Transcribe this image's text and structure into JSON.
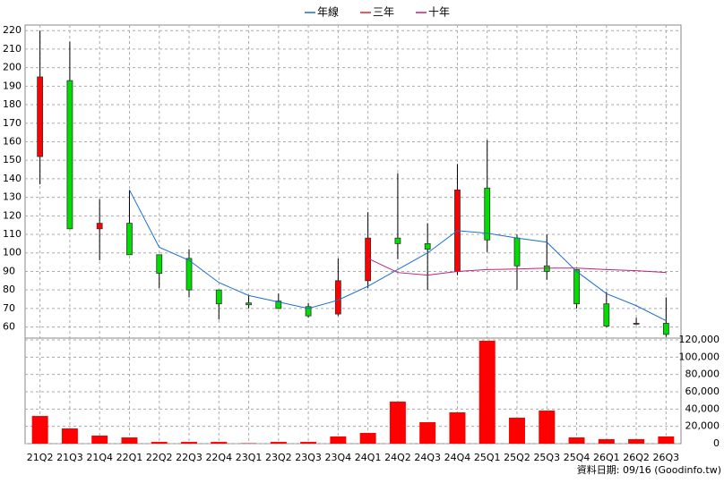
{
  "chart_data": [
    {
      "type": "candlestick",
      "open": [
        152,
        193,
        113,
        116,
        99,
        97,
        80,
        73,
        74,
        71,
        67,
        85,
        108,
        105,
        90,
        135,
        108,
        93,
        91,
        72.5,
        62,
        62
      ],
      "high": [
        220,
        214,
        129,
        134,
        99,
        102,
        80,
        77,
        78,
        73,
        97,
        122,
        143,
        116,
        148,
        161,
        110,
        110,
        91,
        79,
        65,
        76
      ],
      "low": [
        137,
        113,
        96,
        99,
        81,
        76,
        64,
        70,
        70,
        65,
        66,
        81,
        96.6,
        80,
        88,
        100.5,
        80,
        85.5,
        70,
        60,
        61,
        54.7
      ],
      "close": [
        195,
        113,
        116,
        99,
        89,
        80,
        72.5,
        72,
        70,
        66,
        85,
        108,
        105,
        102,
        134,
        107,
        93,
        90,
        72.5,
        60.5,
        62,
        56
      ],
      "up_color": "#ff0000",
      "down_color": "#00dd00",
      "series": [
        {
          "name": "年線",
          "color": "#1a6fd1",
          "values": [
            null,
            null,
            null,
            134,
            103,
            96,
            84,
            77,
            73.5,
            70,
            74.5,
            82,
            91,
            100,
            112,
            110.6,
            108,
            105.8,
            90,
            78,
            71.5,
            63.4
          ]
        },
        {
          "name": "三年",
          "color": "#e0202a",
          "values": [
            null,
            null,
            null,
            null,
            null,
            null,
            null,
            null,
            null,
            null,
            null,
            null,
            null,
            null,
            null,
            null,
            null,
            null,
            null,
            null,
            null,
            null
          ]
        },
        {
          "name": "十年",
          "color": "#c0207a",
          "values": [
            null,
            null,
            null,
            null,
            null,
            null,
            null,
            null,
            null,
            null,
            null,
            97,
            89.4,
            88,
            90,
            91,
            91.3,
            91.8,
            91.8,
            91,
            90.4,
            89.4
          ]
        }
      ],
      "ylim": [
        54,
        223
      ],
      "yticks": [
        60,
        70,
        80,
        90,
        100,
        110,
        120,
        130,
        140,
        150,
        160,
        170,
        180,
        190,
        200,
        210,
        220
      ],
      "grid": true
    },
    {
      "type": "bar",
      "categories": [
        "21Q2",
        "21Q3",
        "21Q4",
        "22Q1",
        "22Q2",
        "22Q3",
        "22Q4",
        "23Q1",
        "23Q2",
        "23Q3",
        "23Q4",
        "24Q1",
        "24Q2",
        "24Q3",
        "24Q4",
        "25Q1",
        "25Q2",
        "25Q3",
        "25Q4",
        "26Q1",
        "26Q2",
        "26Q3"
      ],
      "values": [
        32000,
        17600,
        9300,
        7200,
        2000,
        2000,
        2000,
        500,
        2000,
        2000,
        8300,
        12400,
        48600,
        24800,
        36200,
        119000,
        30000,
        38300,
        7200,
        5200,
        5200,
        8300
      ],
      "color": "#ff0000",
      "ylim": [
        0,
        120000
      ],
      "yticks": [
        0,
        {
          "value": 20000,
          "label": "20,000"
        },
        {
          "value": 40000,
          "label": "40,000"
        },
        {
          "value": 60000,
          "label": "60,000"
        },
        {
          "value": 80000,
          "label": "80,000"
        },
        {
          "value": 100000,
          "label": "100,000"
        },
        {
          "value": 120000,
          "label": "120,000"
        }
      ],
      "grid": true
    }
  ],
  "footer": "資料日期: 09/16 (Goodinfo.tw)"
}
